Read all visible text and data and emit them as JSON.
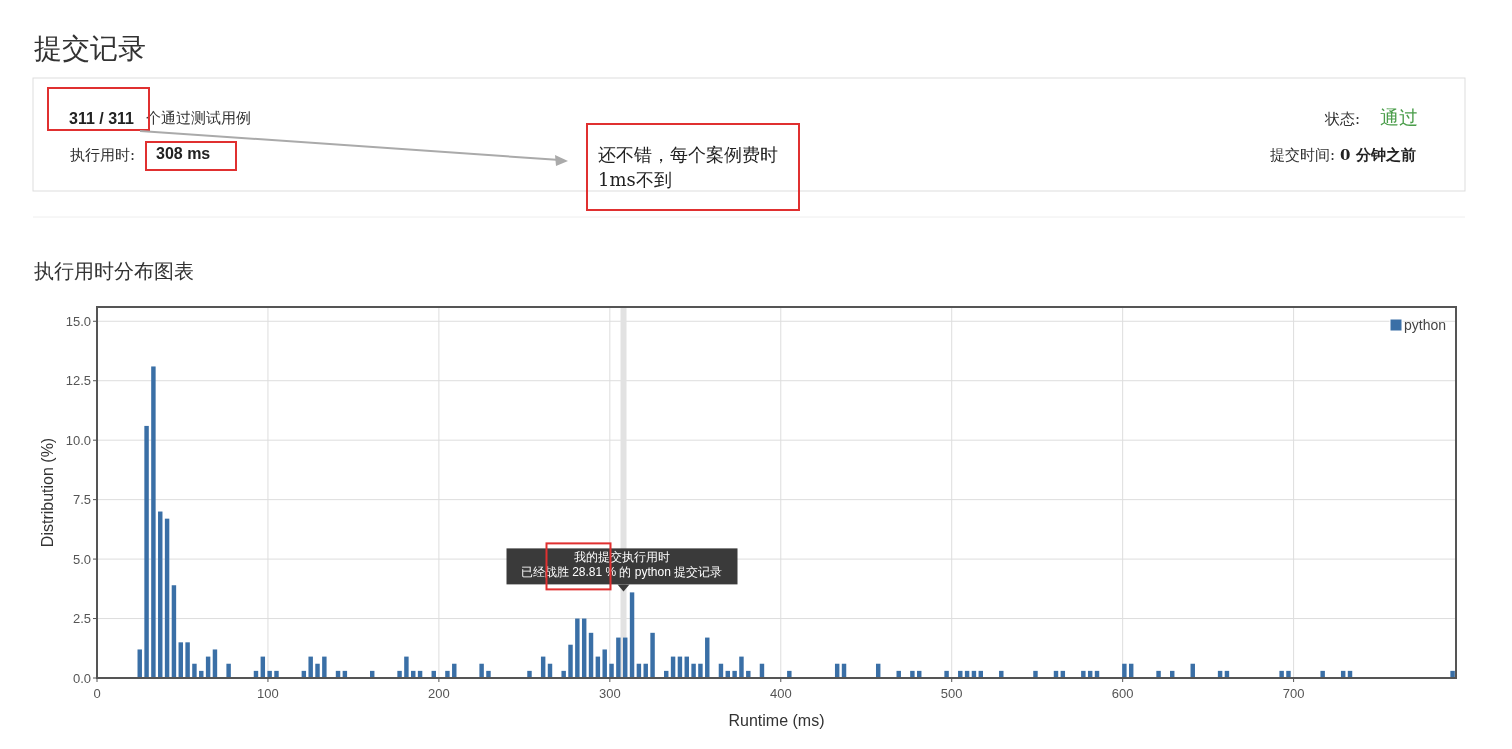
{
  "chart_data": {
    "type": "bar",
    "title": "提交记录",
    "subtitle": "执行用时分布图表",
    "xlabel": "Runtime (ms)",
    "ylabel": "Distribution (%)",
    "annotations": [
      "311 / 311",
      "个通过测试用例",
      "执行用时:",
      "308 ms",
      "还不错，每个案例费时1ms不到",
      "状态:",
      "通过",
      "提交时间:",
      "0 分钟之前",
      "我的提交执行用时",
      {
        "text": "已经战胜 28.81 % 的 python 提交记录",
        "x": 308,
        "y": 3.6
      }
    ],
    "x": [
      25,
      29,
      33,
      37,
      41,
      45,
      49,
      53,
      57,
      61,
      65,
      69,
      77,
      93,
      97,
      101,
      105,
      121,
      125,
      129,
      133,
      141,
      145,
      161,
      177,
      181,
      185,
      189,
      197,
      205,
      209,
      225,
      229,
      253,
      261,
      265,
      273,
      277,
      281,
      285,
      289,
      293,
      297,
      301,
      305,
      309,
      313,
      317,
      321,
      325,
      333,
      337,
      341,
      345,
      349,
      353,
      357,
      365,
      369,
      373,
      377,
      381,
      389,
      405,
      433,
      437,
      457,
      469,
      477,
      481,
      497,
      505,
      509,
      513,
      517,
      529,
      549,
      561,
      565,
      577,
      581,
      585,
      601,
      605,
      621,
      629,
      641,
      657,
      661,
      693,
      697,
      717,
      729,
      733,
      793
    ],
    "series": [
      {
        "name": "python",
        "color": "#3a6fa6",
        "values": [
          1.2,
          10.6,
          13.1,
          7.0,
          6.7,
          3.9,
          1.5,
          1.5,
          0.6,
          0.3,
          0.9,
          1.2,
          0.6,
          0.3,
          0.9,
          0.3,
          0.3,
          0.3,
          0.9,
          0.6,
          0.9,
          0.3,
          0.3,
          0.3,
          0.3,
          0.9,
          0.3,
          0.3,
          0.3,
          0.3,
          0.6,
          0.6,
          0.3,
          0.3,
          0.9,
          0.6,
          0.3,
          1.4,
          2.5,
          2.5,
          1.9,
          0.9,
          1.2,
          0.6,
          1.7,
          1.7,
          3.6,
          0.6,
          0.6,
          1.9,
          0.3,
          0.9,
          0.9,
          0.9,
          0.6,
          0.6,
          1.7,
          0.6,
          0.3,
          0.3,
          0.9,
          0.3,
          0.6,
          0.3,
          0.6,
          0.6,
          0.6,
          0.3,
          0.3,
          0.3,
          0.3,
          0.3,
          0.3,
          0.3,
          0.3,
          0.3,
          0.3,
          0.3,
          0.3,
          0.3,
          0.3,
          0.3,
          0.6,
          0.6,
          0.3,
          0.3,
          0.6,
          0.3,
          0.3,
          0.3,
          0.3,
          0.3,
          0.3,
          0.3,
          0.3
        ]
      }
    ],
    "xlim": [
      0,
      795
    ],
    "xticks": [
      0,
      100,
      200,
      300,
      400,
      500,
      600,
      700
    ],
    "ylim": [
      0,
      15.6
    ],
    "yticks": [
      {
        "value": 0,
        "label": "0.0"
      },
      {
        "value": 2.5,
        "label": "2.5"
      },
      {
        "value": 5,
        "label": "5.0"
      },
      {
        "value": 7.5,
        "label": "7.5"
      },
      {
        "value": 10,
        "label": "10.0"
      },
      {
        "value": 12.5,
        "label": "12.5"
      },
      {
        "value": 15,
        "label": "15.0"
      }
    ],
    "ref_lines": [
      {
        "axis": "x",
        "value": 308,
        "color": "#e2e2e2"
      }
    ],
    "grid": true,
    "legend": "top right"
  }
}
